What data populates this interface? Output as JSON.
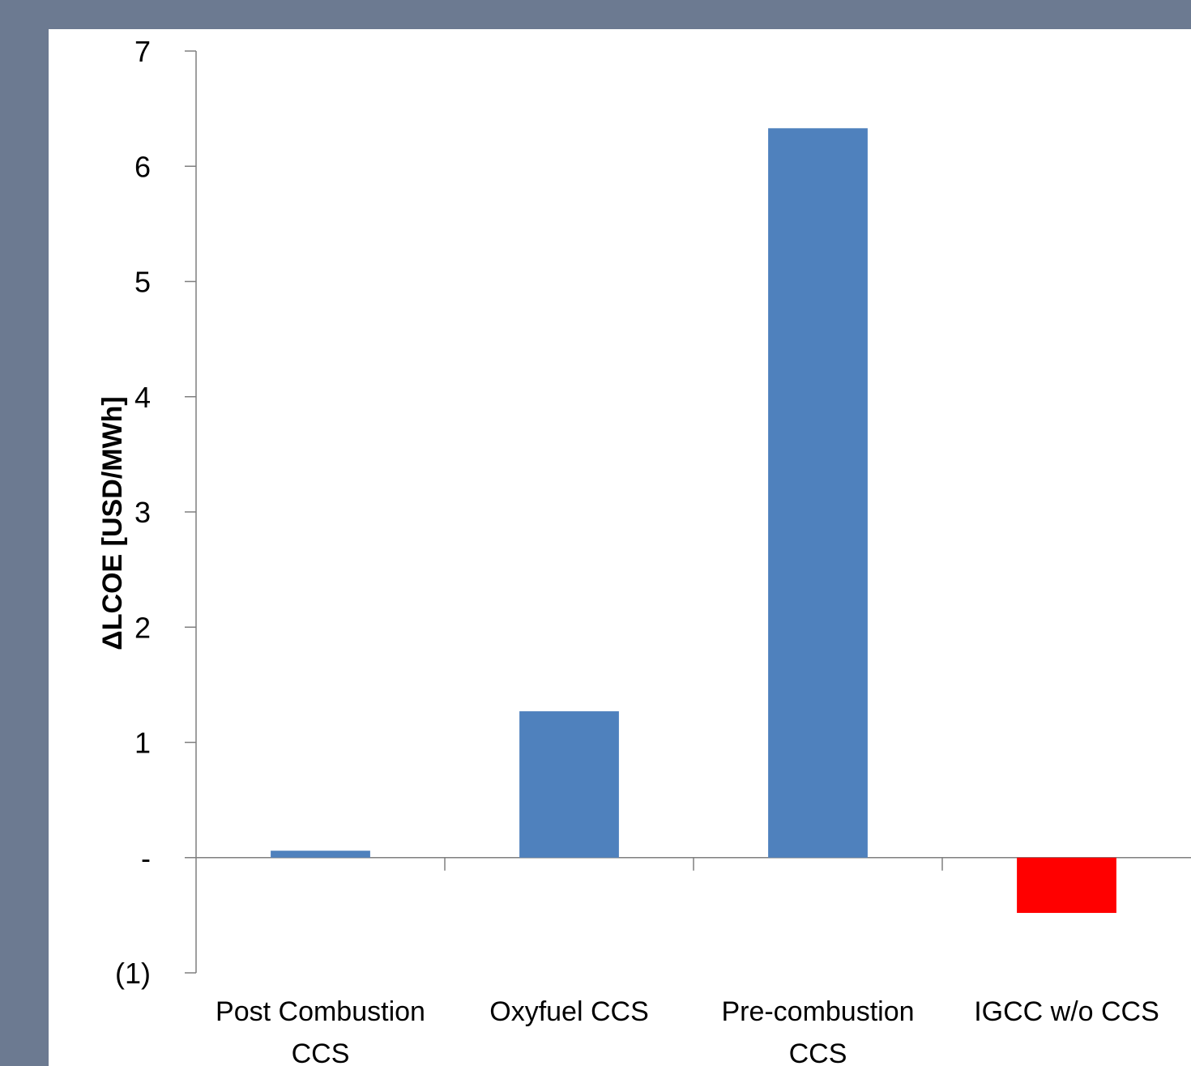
{
  "chart_data": {
    "type": "bar",
    "title": "",
    "xlabel": "",
    "ylabel": "ΔLCOE [USD/MWh]",
    "categories": [
      [
        "Post Combustion",
        "CCS"
      ],
      [
        "Oxyfuel CCS"
      ],
      [
        "Pre-combustion",
        "CCS"
      ],
      [
        "IGCC w/o CCS"
      ]
    ],
    "values": [
      0.06,
      1.27,
      6.33,
      -0.48
    ],
    "bar_colors": [
      "#4f81bd",
      "#4f81bd",
      "#4f81bd",
      "#ff0000"
    ],
    "ylim": [
      -1,
      7
    ],
    "yticks": [
      7,
      6,
      5,
      4,
      3,
      2,
      1,
      0,
      -1
    ],
    "ytick_labels": [
      "7",
      "6",
      "5",
      "4",
      "3",
      "2",
      "1",
      "-",
      "(1)"
    ],
    "grid": false,
    "legend": "none"
  },
  "colors": {
    "frame": "#6c7a91",
    "panel": "#ffffff",
    "axis": "#7f7f7f"
  }
}
